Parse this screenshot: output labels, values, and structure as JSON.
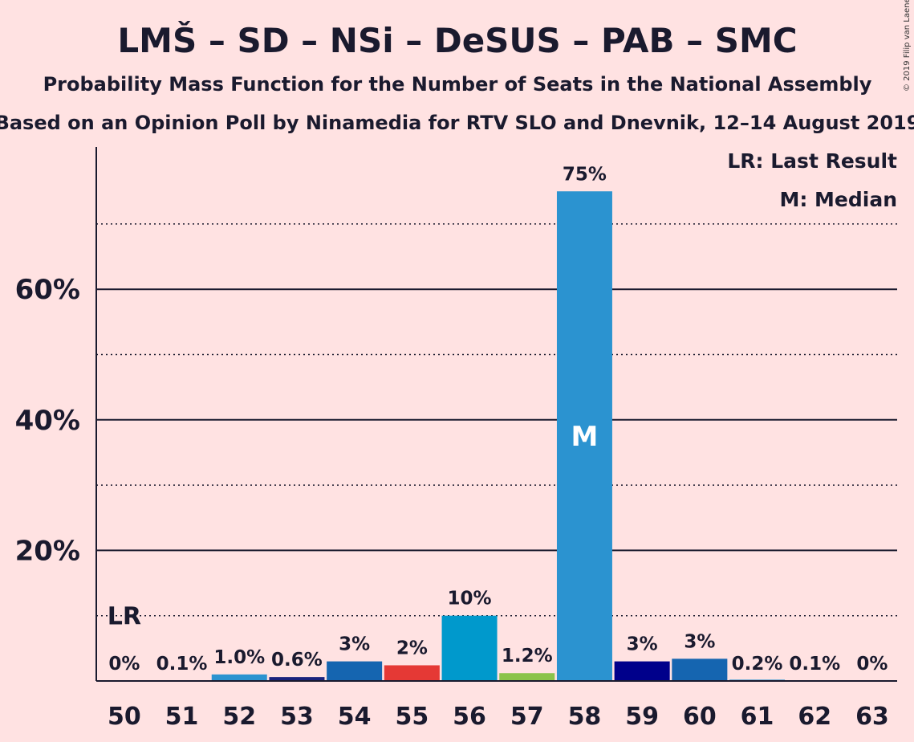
{
  "header": {
    "title": "LMŠ – SD – NSi – DeSUS – PAB – SMC",
    "subtitle1": "Probability Mass Function for the Number of Seats in the National Assembly",
    "subtitle2": "Based on an Opinion Poll by Ninamedia for RTV SLO and Dnevnik, 12–14 August 2019"
  },
  "legend": {
    "lr": "LR: Last Result",
    "median": "M: Median"
  },
  "copyright": "© 2019 Filip van Laenen",
  "chart_data": {
    "type": "bar",
    "categories": [
      "50",
      "51",
      "52",
      "53",
      "54",
      "55",
      "56",
      "57",
      "58",
      "59",
      "60",
      "61",
      "62",
      "63"
    ],
    "values": [
      0,
      0.1,
      1.0,
      0.6,
      3,
      2.4,
      10,
      1.2,
      75,
      3,
      3.4,
      0.2,
      0.1,
      0
    ],
    "value_labels": [
      "0%",
      "0.1%",
      "1.0%",
      "0.6%",
      "3%",
      "2%",
      "10%",
      "1.2%",
      "75%",
      "3%",
      "3%",
      "0.2%",
      "0.1%",
      "0%"
    ],
    "bar_colors": [
      "#2b93d0",
      "#2b93d0",
      "#2b93d0",
      "#1a237e",
      "#1565b0",
      "#e53935",
      "#0099cc",
      "#8bc34a",
      "#2b93d0",
      "#00008b",
      "#1565b0",
      "#2b93d0",
      "#2b93d0",
      "#2b93d0"
    ],
    "y_ticks": [
      20,
      40,
      60
    ],
    "y_tick_labels": [
      "20%",
      "40%",
      "60%"
    ],
    "dotted_gridlines": [
      10,
      30,
      50,
      70
    ],
    "ylim": [
      0,
      82
    ],
    "last_result": {
      "category": "50",
      "label": "LR",
      "level": 10
    },
    "median": {
      "category": "58",
      "label": "M"
    },
    "legend_position": "top-right"
  }
}
